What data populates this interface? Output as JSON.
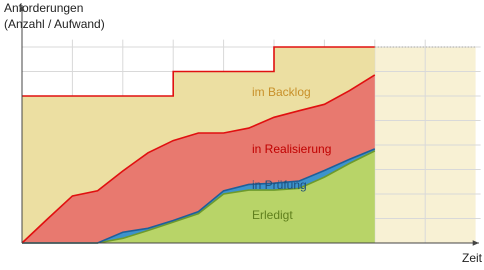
{
  "chart_data": {
    "type": "stacked_area",
    "y_label_lines": [
      "Anforderungen",
      "(Anzahl / Aufwand)"
    ],
    "x_label": "Zeit",
    "x": [
      0,
      0.5,
      1,
      1.5,
      2,
      2.5,
      3,
      3,
      3.5,
      4,
      4.5,
      5,
      5,
      5.5,
      6,
      6.5,
      7
    ],
    "series": [
      {
        "name": "Erledigt",
        "color": "#b8d468",
        "line_color": "#6e9a2c",
        "label_color": "#5f7f1c",
        "values": [
          0,
          0,
          0,
          0,
          0.19,
          0.51,
          0.85,
          0.85,
          1.2,
          2.0,
          2.16,
          2.16,
          2.16,
          2.23,
          2.69,
          3.25,
          3.76
        ]
      },
      {
        "name": "in Prüfung",
        "color": "#3d93cc",
        "line_color": "#1f5f99",
        "label_color": "#1f4e79",
        "values": [
          0,
          0,
          0,
          0,
          0.25,
          0.09,
          0.07,
          0.07,
          0.08,
          0.13,
          0.23,
          0.28,
          0.28,
          0.3,
          0.27,
          0.17,
          0.08
        ]
      },
      {
        "name": "in Realisierung",
        "color": "#e8796f",
        "line_color": "#e01010",
        "label_color": "#c00000",
        "values": [
          0,
          0.97,
          1.92,
          2.13,
          2.5,
          3.08,
          3.26,
          3.26,
          3.21,
          2.36,
          2.3,
          2.69,
          2.69,
          2.87,
          2.7,
          2.8,
          3.02
        ]
      },
      {
        "name": "im Backlog",
        "color": "#ecdfa2",
        "line_color": "#e01010",
        "label_color": "#c8902a",
        "values": [
          6,
          5.03,
          4.08,
          3.87,
          3.06,
          2.32,
          1.82,
          2.82,
          2.51,
          2.51,
          2.31,
          1.87,
          2.87,
          2.6,
          2.34,
          1.78,
          1.14
        ]
      }
    ],
    "projection": {
      "x": [
        7,
        9
      ],
      "values": [
        8,
        8
      ],
      "color": "#f8f1d4"
    },
    "xlim": [
      0,
      9.1
    ],
    "ylim": [
      0,
      8.3
    ],
    "xticks": [
      1,
      2,
      3,
      4,
      5,
      6,
      7,
      8
    ],
    "yticks": [
      1,
      2,
      3,
      4,
      5,
      6,
      7,
      8
    ],
    "grid": true
  }
}
